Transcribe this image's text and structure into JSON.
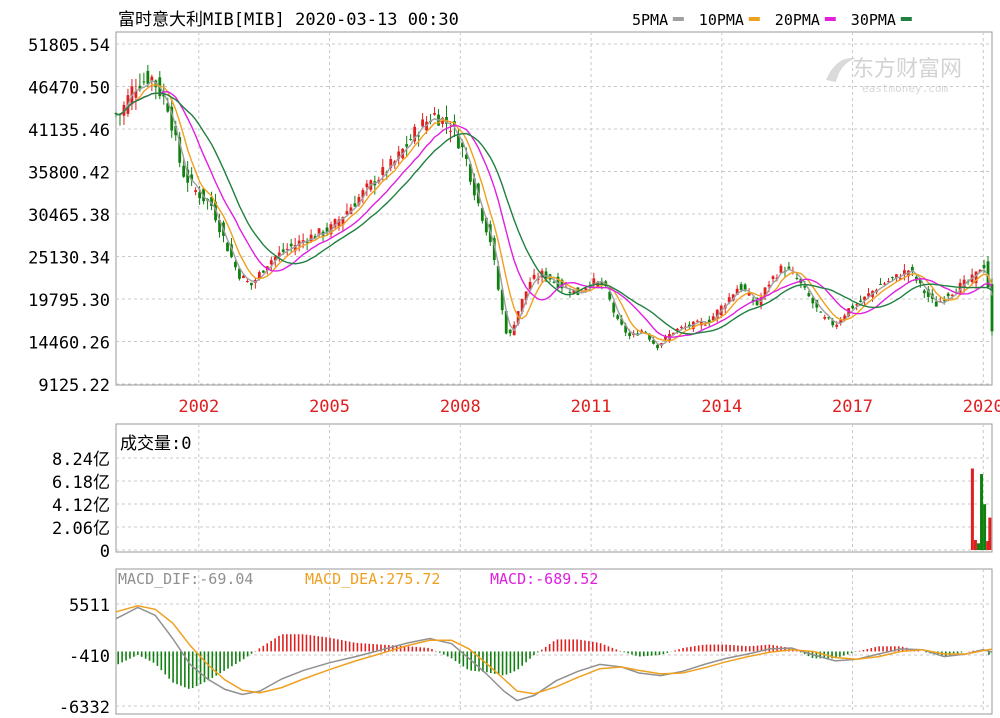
{
  "header": {
    "title": "富时意大利MIB[MIB] 2020-03-13 00:30",
    "ma_legend": [
      {
        "label": "5PMA",
        "color": "#a0a0a0"
      },
      {
        "label": "10PMA",
        "color": "#f0a020"
      },
      {
        "label": "20PMA",
        "color": "#e020e0"
      },
      {
        "label": "30PMA",
        "color": "#208040"
      }
    ]
  },
  "watermark": {
    "brand": "东方财富网",
    "domain": "eastmoney.com"
  },
  "volume_panel": {
    "title": "成交量:0"
  },
  "macd_panel": {
    "dif_label": "MACD_DIF:-69.04",
    "dea_label": "MACD_DEA:275.72",
    "macd_label": "MACD:-689.52"
  },
  "colors": {
    "up": "#e02020",
    "down": "#108010",
    "grid": "#c8c8c8",
    "axis_year": "#e02020",
    "text": "#000000",
    "dif": "#909090",
    "dea": "#f0a020",
    "macd": "#e020e0"
  },
  "chart_data": [
    {
      "type": "candlestick",
      "title": "富时意大利MIB[MIB]",
      "x_tick_labels": [
        "2002",
        "2005",
        "2008",
        "2011",
        "2014",
        "2017",
        "2020"
      ],
      "x_tick_years": [
        2002,
        2005,
        2008,
        2011,
        2014,
        2017,
        2020
      ],
      "x_range_years": [
        2000.1,
        2020.2
      ],
      "y_tick_labels": [
        "51805.54",
        "46470.50",
        "41135.46",
        "35800.42",
        "30465.38",
        "25130.34",
        "19795.30",
        "14460.26",
        "9125.22"
      ],
      "ylim": [
        9125.22,
        51805.54
      ],
      "close_series": [
        {
          "year": 2000.2,
          "close": 43000
        },
        {
          "year": 2000.5,
          "close": 46500
        },
        {
          "year": 2000.9,
          "close": 47800
        },
        {
          "year": 2001.3,
          "close": 44000
        },
        {
          "year": 2001.6,
          "close": 36000
        },
        {
          "year": 2001.9,
          "close": 33500
        },
        {
          "year": 2002.3,
          "close": 31500
        },
        {
          "year": 2002.6,
          "close": 27000
        },
        {
          "year": 2002.9,
          "close": 23000
        },
        {
          "year": 2003.2,
          "close": 21500
        },
        {
          "year": 2003.6,
          "close": 24500
        },
        {
          "year": 2004.0,
          "close": 26000
        },
        {
          "year": 2004.5,
          "close": 27500
        },
        {
          "year": 2005.0,
          "close": 28500
        },
        {
          "year": 2005.5,
          "close": 31500
        },
        {
          "year": 2006.0,
          "close": 34500
        },
        {
          "year": 2006.5,
          "close": 37000
        },
        {
          "year": 2007.0,
          "close": 41000
        },
        {
          "year": 2007.4,
          "close": 43000
        },
        {
          "year": 2007.8,
          "close": 41500
        },
        {
          "year": 2008.1,
          "close": 38000
        },
        {
          "year": 2008.4,
          "close": 32000
        },
        {
          "year": 2008.7,
          "close": 27000
        },
        {
          "year": 2008.9,
          "close": 20000
        },
        {
          "year": 2009.1,
          "close": 14500
        },
        {
          "year": 2009.3,
          "close": 18000
        },
        {
          "year": 2009.6,
          "close": 22000
        },
        {
          "year": 2009.9,
          "close": 23000
        },
        {
          "year": 2010.3,
          "close": 21500
        },
        {
          "year": 2010.7,
          "close": 20500
        },
        {
          "year": 2011.0,
          "close": 22000
        },
        {
          "year": 2011.3,
          "close": 21500
        },
        {
          "year": 2011.6,
          "close": 17000
        },
        {
          "year": 2011.9,
          "close": 15000
        },
        {
          "year": 2012.2,
          "close": 16000
        },
        {
          "year": 2012.5,
          "close": 13800
        },
        {
          "year": 2012.9,
          "close": 15800
        },
        {
          "year": 2013.3,
          "close": 16500
        },
        {
          "year": 2013.7,
          "close": 17000
        },
        {
          "year": 2014.1,
          "close": 19500
        },
        {
          "year": 2014.4,
          "close": 21500
        },
        {
          "year": 2014.8,
          "close": 19000
        },
        {
          "year": 2015.1,
          "close": 22000
        },
        {
          "year": 2015.4,
          "close": 23800
        },
        {
          "year": 2015.7,
          "close": 22500
        },
        {
          "year": 2016.0,
          "close": 20000
        },
        {
          "year": 2016.3,
          "close": 17500
        },
        {
          "year": 2016.6,
          "close": 16500
        },
        {
          "year": 2016.9,
          "close": 18500
        },
        {
          "year": 2017.2,
          "close": 19500
        },
        {
          "year": 2017.6,
          "close": 21500
        },
        {
          "year": 2018.0,
          "close": 22500
        },
        {
          "year": 2018.3,
          "close": 23500
        },
        {
          "year": 2018.6,
          "close": 21000
        },
        {
          "year": 2018.9,
          "close": 19000
        },
        {
          "year": 2019.2,
          "close": 20500
        },
        {
          "year": 2019.5,
          "close": 21500
        },
        {
          "year": 2019.8,
          "close": 22500
        },
        {
          "year": 2020.0,
          "close": 24500
        },
        {
          "year": 2020.1,
          "close": 22000
        },
        {
          "year": 2020.2,
          "close": 15500
        }
      ]
    },
    {
      "type": "bar",
      "title": "成交量",
      "y_tick_labels": [
        "8.24亿",
        "6.18亿",
        "4.12亿",
        "2.06亿",
        "0"
      ],
      "ylim": [
        0,
        8.24
      ],
      "unit": "亿",
      "bars": [
        {
          "year": 2019.75,
          "value": 7.3,
          "dir": "up"
        },
        {
          "year": 2019.82,
          "value": 0.9,
          "dir": "up"
        },
        {
          "year": 2019.89,
          "value": 0.6,
          "dir": "down"
        },
        {
          "year": 2019.96,
          "value": 6.8,
          "dir": "down"
        },
        {
          "year": 2020.03,
          "value": 4.1,
          "dir": "down"
        },
        {
          "year": 2020.1,
          "value": 0.8,
          "dir": "up"
        },
        {
          "year": 2020.15,
          "value": 2.9,
          "dir": "up"
        }
      ]
    },
    {
      "type": "line",
      "title": "MACD",
      "y_tick_labels": [
        "5511",
        "-410",
        "-6332"
      ],
      "ylim": [
        -6332,
        5511
      ],
      "dif": [
        {
          "year": 2000.1,
          "value": 3800
        },
        {
          "year": 2000.6,
          "value": 5100
        },
        {
          "year": 2001.0,
          "value": 4200
        },
        {
          "year": 2001.4,
          "value": 1500
        },
        {
          "year": 2001.8,
          "value": -1500
        },
        {
          "year": 2002.2,
          "value": -3200
        },
        {
          "year": 2002.6,
          "value": -4400
        },
        {
          "year": 2003.0,
          "value": -5000
        },
        {
          "year": 2003.4,
          "value": -4600
        },
        {
          "year": 2003.9,
          "value": -3200
        },
        {
          "year": 2004.4,
          "value": -2200
        },
        {
          "year": 2005.0,
          "value": -1300
        },
        {
          "year": 2005.6,
          "value": -600
        },
        {
          "year": 2006.2,
          "value": 200
        },
        {
          "year": 2006.8,
          "value": 1000
        },
        {
          "year": 2007.3,
          "value": 1500
        },
        {
          "year": 2007.8,
          "value": 900
        },
        {
          "year": 2008.2,
          "value": -800
        },
        {
          "year": 2008.6,
          "value": -2600
        },
        {
          "year": 2009.0,
          "value": -4600
        },
        {
          "year": 2009.3,
          "value": -5700
        },
        {
          "year": 2009.7,
          "value": -5100
        },
        {
          "year": 2010.2,
          "value": -3400
        },
        {
          "year": 2010.7,
          "value": -2300
        },
        {
          "year": 2011.2,
          "value": -1500
        },
        {
          "year": 2011.7,
          "value": -1800
        },
        {
          "year": 2012.1,
          "value": -2500
        },
        {
          "year": 2012.6,
          "value": -2800
        },
        {
          "year": 2013.1,
          "value": -2300
        },
        {
          "year": 2013.6,
          "value": -1500
        },
        {
          "year": 2014.1,
          "value": -800
        },
        {
          "year": 2014.6,
          "value": -300
        },
        {
          "year": 2015.1,
          "value": 300
        },
        {
          "year": 2015.6,
          "value": 400
        },
        {
          "year": 2016.1,
          "value": -400
        },
        {
          "year": 2016.6,
          "value": -1100
        },
        {
          "year": 2017.1,
          "value": -900
        },
        {
          "year": 2017.6,
          "value": -300
        },
        {
          "year": 2018.1,
          "value": 300
        },
        {
          "year": 2018.6,
          "value": 200
        },
        {
          "year": 2019.1,
          "value": -600
        },
        {
          "year": 2019.6,
          "value": -300
        },
        {
          "year": 2020.0,
          "value": 200
        },
        {
          "year": 2020.2,
          "value": -69.04
        }
      ],
      "dea": [
        {
          "year": 2000.1,
          "value": 4600
        },
        {
          "year": 2000.6,
          "value": 5300
        },
        {
          "year": 2001.0,
          "value": 4900
        },
        {
          "year": 2001.4,
          "value": 3300
        },
        {
          "year": 2001.8,
          "value": 700
        },
        {
          "year": 2002.2,
          "value": -1500
        },
        {
          "year": 2002.6,
          "value": -3300
        },
        {
          "year": 2003.0,
          "value": -4500
        },
        {
          "year": 2003.4,
          "value": -4800
        },
        {
          "year": 2003.9,
          "value": -4200
        },
        {
          "year": 2004.4,
          "value": -3200
        },
        {
          "year": 2005.0,
          "value": -2100
        },
        {
          "year": 2005.6,
          "value": -1100
        },
        {
          "year": 2006.2,
          "value": -200
        },
        {
          "year": 2006.8,
          "value": 700
        },
        {
          "year": 2007.3,
          "value": 1300
        },
        {
          "year": 2007.8,
          "value": 1300
        },
        {
          "year": 2008.2,
          "value": 300
        },
        {
          "year": 2008.6,
          "value": -1400
        },
        {
          "year": 2009.0,
          "value": -3200
        },
        {
          "year": 2009.3,
          "value": -4600
        },
        {
          "year": 2009.7,
          "value": -4900
        },
        {
          "year": 2010.2,
          "value": -4100
        },
        {
          "year": 2010.7,
          "value": -3000
        },
        {
          "year": 2011.2,
          "value": -2000
        },
        {
          "year": 2011.7,
          "value": -1800
        },
        {
          "year": 2012.1,
          "value": -2200
        },
        {
          "year": 2012.6,
          "value": -2600
        },
        {
          "year": 2013.1,
          "value": -2500
        },
        {
          "year": 2013.6,
          "value": -1900
        },
        {
          "year": 2014.1,
          "value": -1200
        },
        {
          "year": 2014.6,
          "value": -600
        },
        {
          "year": 2015.1,
          "value": -100
        },
        {
          "year": 2015.6,
          "value": 200
        },
        {
          "year": 2016.1,
          "value": 0
        },
        {
          "year": 2016.6,
          "value": -700
        },
        {
          "year": 2017.1,
          "value": -900
        },
        {
          "year": 2017.6,
          "value": -600
        },
        {
          "year": 2018.1,
          "value": 0
        },
        {
          "year": 2018.6,
          "value": 200
        },
        {
          "year": 2019.1,
          "value": -300
        },
        {
          "year": 2019.6,
          "value": -300
        },
        {
          "year": 2020.0,
          "value": 100
        },
        {
          "year": 2020.2,
          "value": 275.72
        }
      ]
    }
  ]
}
